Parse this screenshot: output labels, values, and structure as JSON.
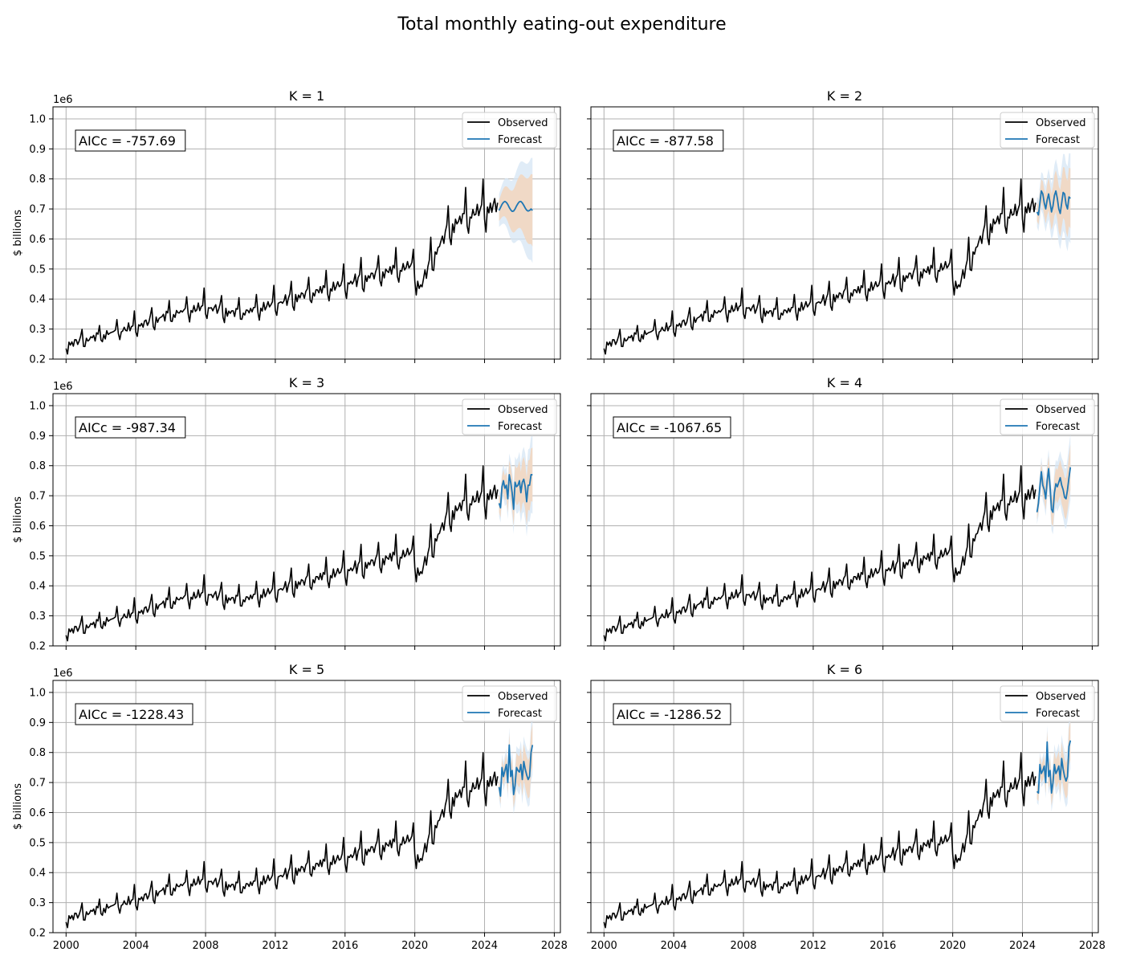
{
  "figure": {
    "title": "Total monthly eating-out expenditure"
  },
  "chart_data": {
    "type": "line",
    "title": "Total monthly eating-out expenditure",
    "ylabel": "$ billions",
    "y_scale_label": "1e6",
    "xlim": [
      1999.25,
      2028.35
    ],
    "ylim": [
      0.2,
      1.04
    ],
    "x_ticks": [
      2000,
      2004,
      2008,
      2012,
      2016,
      2020,
      2024,
      2028
    ],
    "y_ticks": [
      0.2,
      0.3,
      0.4,
      0.5,
      0.6,
      0.7,
      0.8,
      0.9,
      1.0
    ],
    "x_tick_labels": [
      "2000",
      "2004",
      "2008",
      "2012",
      "2016",
      "2020",
      "2024",
      "2028"
    ],
    "y_tick_labels": [
      "0.2",
      "0.3",
      "0.4",
      "0.5",
      "0.6",
      "0.7",
      "0.8",
      "0.9",
      "1.0"
    ],
    "grid": true,
    "legend": {
      "placement": "top-right",
      "entries": [
        "Observed",
        "Forecast"
      ]
    },
    "colors": {
      "observed": "#000000",
      "forecast": "#1f77b4",
      "band_80": "#f2d7c0",
      "band_95": "#d6e6f4",
      "grid": "#b0b0b0"
    },
    "observed": {
      "name": "Observed",
      "start": "2000-01",
      "end": "2024-10",
      "trend_knots": [
        [
          2000.0,
          0.245
        ],
        [
          2002.0,
          0.275
        ],
        [
          2004.0,
          0.305
        ],
        [
          2006.0,
          0.345
        ],
        [
          2008.0,
          0.37
        ],
        [
          2009.5,
          0.35
        ],
        [
          2010.5,
          0.355
        ],
        [
          2012.0,
          0.38
        ],
        [
          2014.0,
          0.415
        ],
        [
          2016.0,
          0.445
        ],
        [
          2018.0,
          0.48
        ],
        [
          2019.8,
          0.505
        ],
        [
          2020.3,
          0.43
        ],
        [
          2021.0,
          0.53
        ],
        [
          2022.0,
          0.63
        ],
        [
          2023.0,
          0.67
        ],
        [
          2024.75,
          0.705
        ]
      ],
      "seasonal_profile": [
        -0.015,
        -0.03,
        0.005,
        -0.005,
        0.01,
        0.0,
        0.005,
        0.015,
        -0.005,
        0.01,
        0.015,
        0.055
      ],
      "seasonal_scale_ref": 0.35
    },
    "panels": [
      {
        "title": "K = 1",
        "aicc_label": "AICc = -757.69",
        "forecast": {
          "name": "Forecast",
          "start": "2024-11",
          "values": [
            0.695,
            0.705,
            0.715,
            0.722,
            0.725,
            0.722,
            0.715,
            0.705,
            0.697,
            0.692,
            0.693,
            0.7,
            0.71,
            0.718,
            0.724,
            0.725,
            0.72,
            0.712,
            0.703,
            0.696,
            0.693,
            0.695,
            0.7,
            0.695
          ],
          "pi80_start": 0.035,
          "pi80_end": 0.12,
          "pi95_start": 0.055,
          "pi95_end": 0.175
        }
      },
      {
        "title": "K = 2",
        "aicc_label": "AICc = -877.58",
        "forecast": {
          "name": "Forecast",
          "start": "2024-11",
          "values": [
            0.69,
            0.68,
            0.72,
            0.76,
            0.75,
            0.72,
            0.7,
            0.73,
            0.75,
            0.72,
            0.69,
            0.71,
            0.745,
            0.76,
            0.735,
            0.7,
            0.685,
            0.72,
            0.755,
            0.75,
            0.715,
            0.7,
            0.74,
            0.735
          ],
          "pi80_start": 0.03,
          "pi80_end": 0.1,
          "pi95_start": 0.05,
          "pi95_end": 0.15
        }
      },
      {
        "title": "K = 3",
        "aicc_label": "AICc = -987.34",
        "forecast": {
          "name": "Forecast",
          "start": "2024-11",
          "values": [
            0.675,
            0.66,
            0.73,
            0.75,
            0.725,
            0.735,
            0.69,
            0.77,
            0.745,
            0.71,
            0.655,
            0.745,
            0.73,
            0.735,
            0.75,
            0.71,
            0.745,
            0.755,
            0.73,
            0.68,
            0.735,
            0.735,
            0.77,
            0.77
          ],
          "pi80_start": 0.03,
          "pi80_end": 0.09,
          "pi95_start": 0.045,
          "pi95_end": 0.13
        }
      },
      {
        "title": "K = 4",
        "aicc_label": "AICc = -1067.65",
        "forecast": {
          "name": "Forecast",
          "start": "2024-11",
          "values": [
            0.645,
            0.675,
            0.73,
            0.78,
            0.735,
            0.72,
            0.69,
            0.75,
            0.79,
            0.73,
            0.655,
            0.645,
            0.71,
            0.74,
            0.73,
            0.745,
            0.76,
            0.735,
            0.72,
            0.695,
            0.69,
            0.72,
            0.76,
            0.795
          ],
          "pi80_start": 0.025,
          "pi80_end": 0.075,
          "pi95_start": 0.04,
          "pi95_end": 0.11
        }
      },
      {
        "title": "K = 5",
        "aicc_label": "AICc = -1228.43",
        "forecast": {
          "name": "Forecast",
          "start": "2024-11",
          "values": [
            0.685,
            0.655,
            0.75,
            0.72,
            0.74,
            0.76,
            0.7,
            0.825,
            0.72,
            0.74,
            0.66,
            0.69,
            0.75,
            0.74,
            0.735,
            0.76,
            0.71,
            0.77,
            0.745,
            0.725,
            0.71,
            0.72,
            0.8,
            0.825
          ],
          "pi80_start": 0.025,
          "pi80_end": 0.07,
          "pi95_start": 0.04,
          "pi95_end": 0.1
        }
      },
      {
        "title": "K = 6",
        "aicc_label": "AICc = -1286.52",
        "forecast": {
          "name": "Forecast",
          "start": "2024-11",
          "values": [
            0.67,
            0.665,
            0.76,
            0.73,
            0.74,
            0.755,
            0.7,
            0.835,
            0.72,
            0.74,
            0.665,
            0.7,
            0.76,
            0.73,
            0.74,
            0.755,
            0.71,
            0.78,
            0.745,
            0.72,
            0.705,
            0.72,
            0.82,
            0.84
          ],
          "pi80_start": 0.025,
          "pi80_end": 0.065,
          "pi95_start": 0.038,
          "pi95_end": 0.095
        }
      }
    ]
  }
}
